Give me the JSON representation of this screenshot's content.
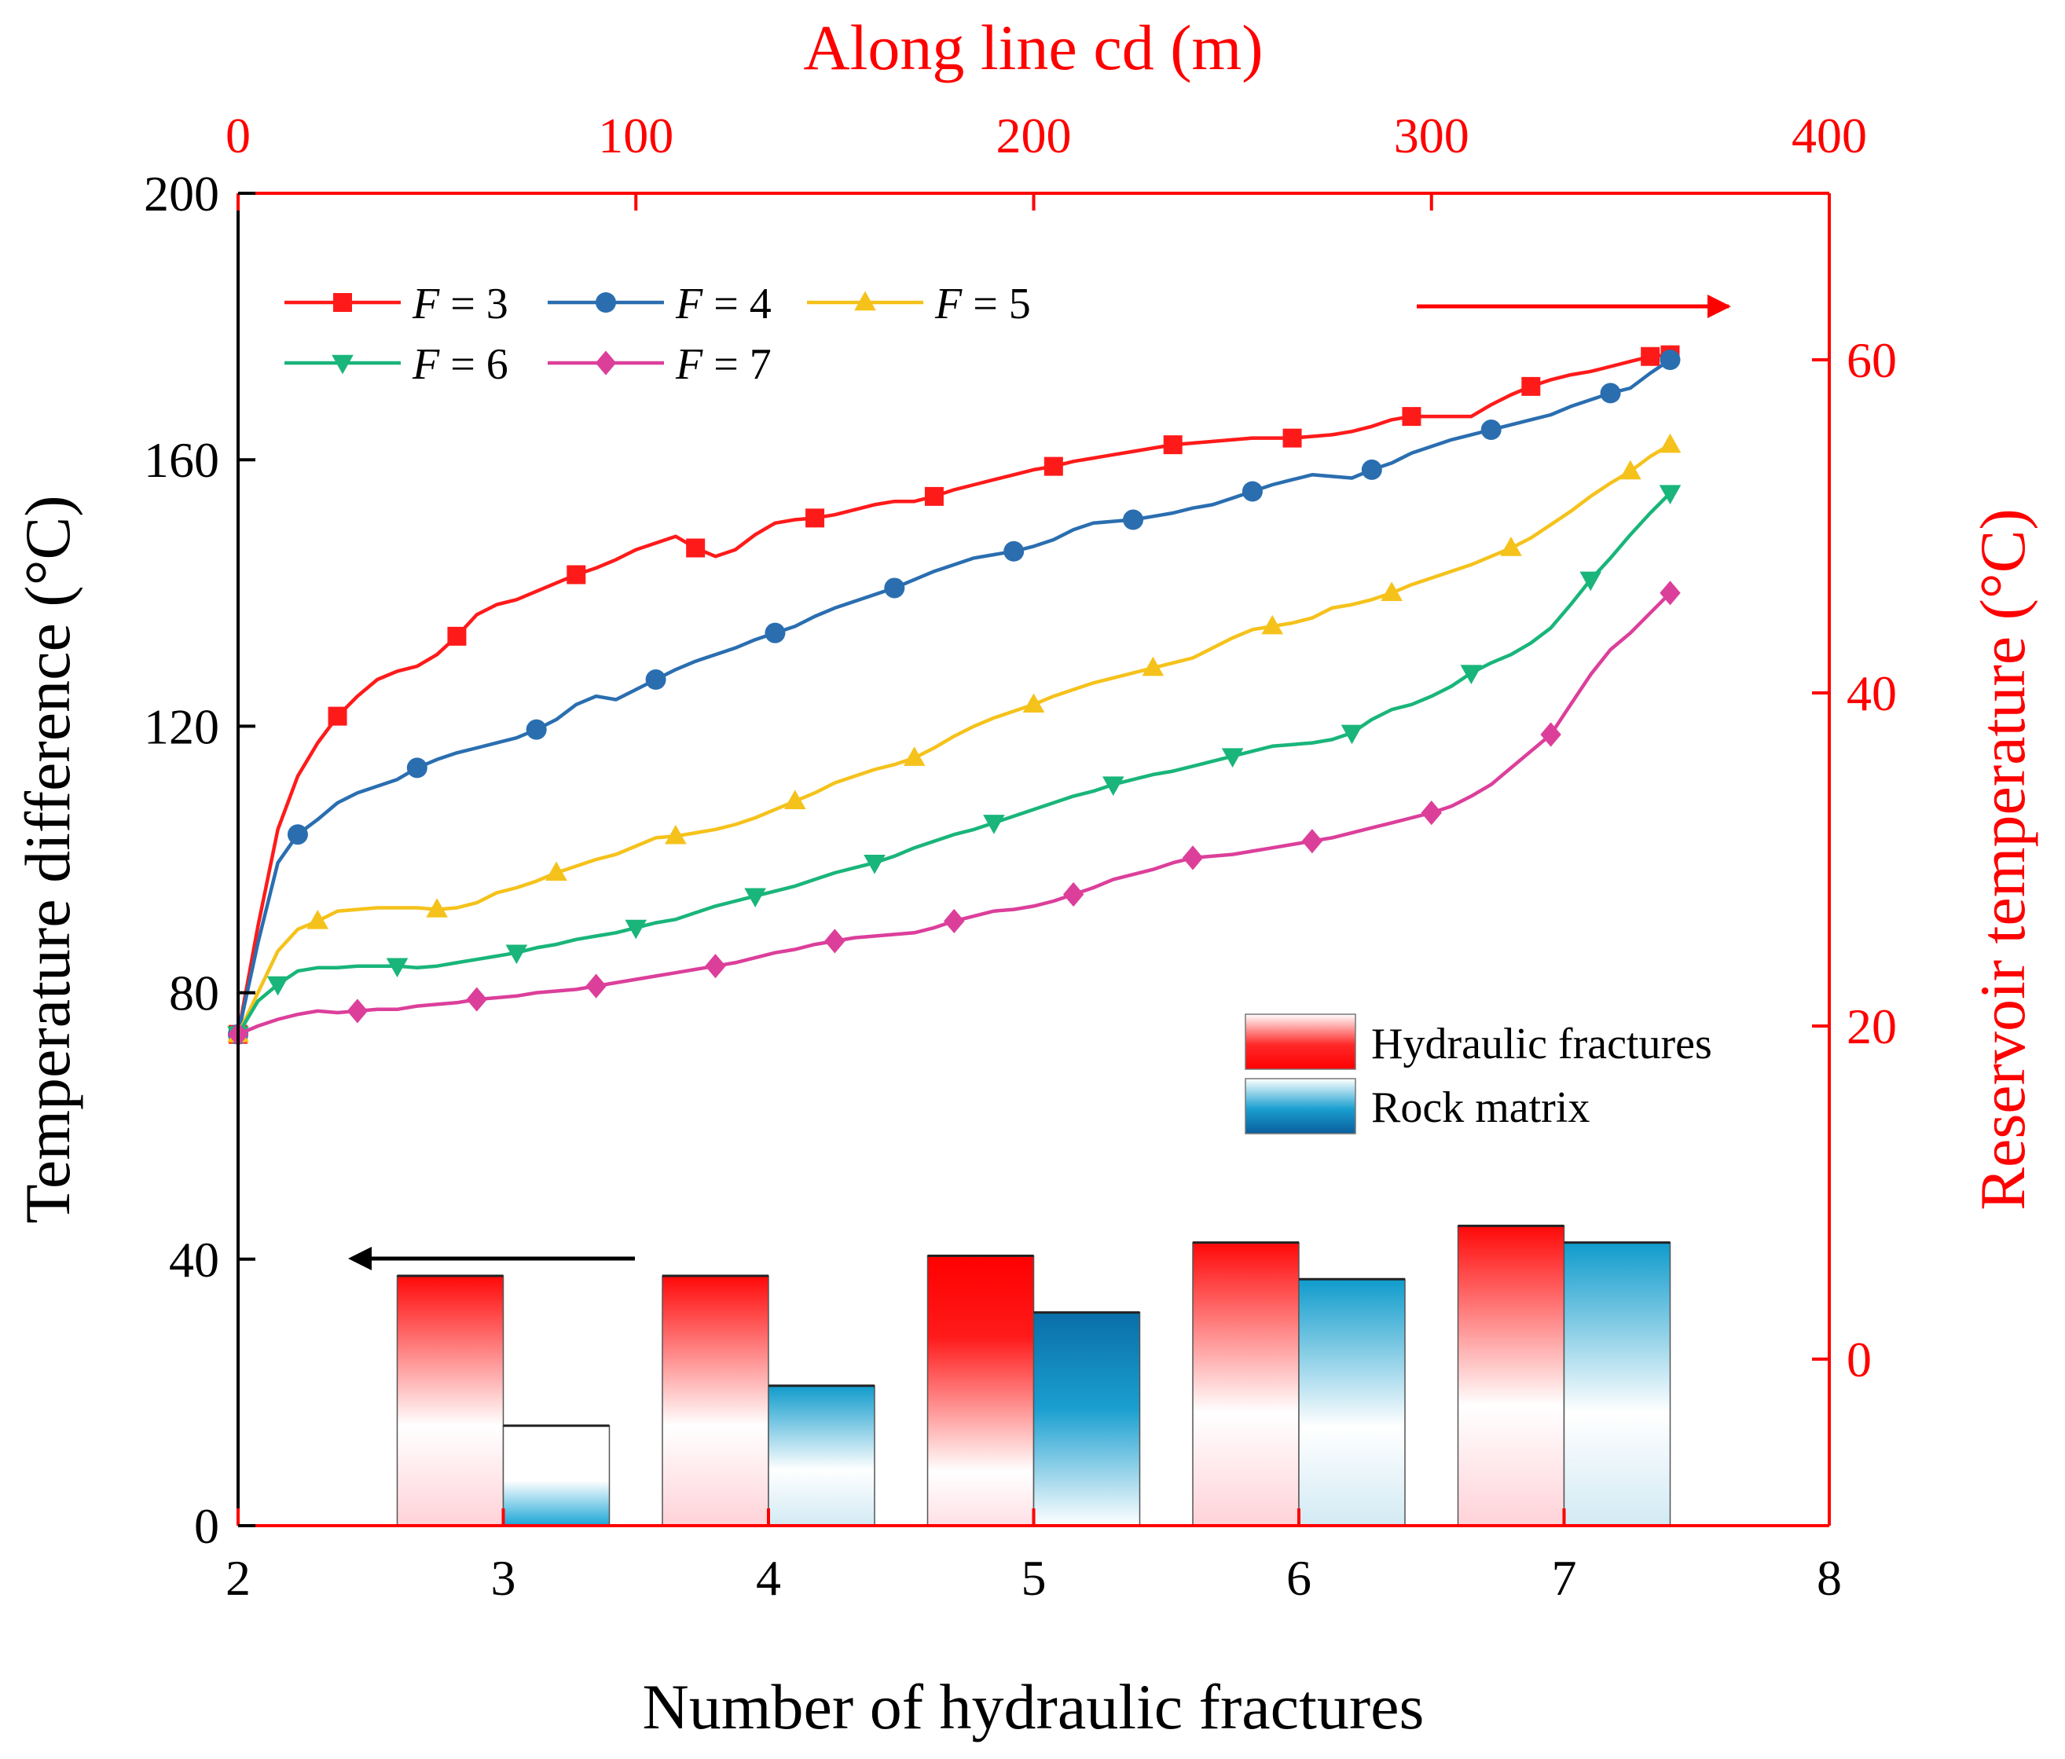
{
  "chart_data": {
    "type": "bar+line",
    "axes": {
      "bottom": {
        "label": "Number of hydraulic fractures",
        "ticks": [
          "2",
          "3",
          "4",
          "5",
          "6",
          "7",
          "8"
        ],
        "min": 2,
        "max": 8
      },
      "left": {
        "label": "Temperature difference (°C)",
        "ticks": [
          "0",
          "40",
          "80",
          "120",
          "160",
          "200"
        ],
        "min": 0,
        "max": 200
      },
      "top": {
        "label": "Along line cd (m)",
        "ticks": [
          "0",
          "100",
          "200",
          "300",
          "400"
        ],
        "min": 0,
        "max": 400
      },
      "right": {
        "label": "Reservoir temperature (°C)",
        "ticks": [
          "0",
          "20",
          "40",
          "60"
        ],
        "min": -10,
        "max": 70
      }
    },
    "bars": {
      "categories": [
        3,
        4,
        5,
        6,
        7
      ],
      "series": [
        {
          "name": "Hydraulic fractures",
          "values": [
            37.5,
            37.5,
            40.5,
            42.5,
            45
          ]
        },
        {
          "name": "Rock matrix",
          "values": [
            15,
            21,
            32,
            37,
            42.5
          ]
        }
      ]
    },
    "lines": {
      "x": [
        0,
        5,
        10,
        15,
        20,
        25,
        30,
        35,
        40,
        45,
        50,
        55,
        60,
        65,
        70,
        75,
        80,
        85,
        90,
        95,
        100,
        105,
        110,
        115,
        120,
        125,
        130,
        135,
        140,
        145,
        150,
        155,
        160,
        165,
        170,
        175,
        180,
        185,
        190,
        195,
        200,
        205,
        210,
        215,
        220,
        225,
        230,
        235,
        240,
        245,
        250,
        255,
        260,
        265,
        270,
        275,
        280,
        285,
        290,
        295,
        300,
        305,
        310,
        315,
        320,
        325,
        330,
        335,
        340,
        345,
        350,
        355,
        360
      ],
      "series": [
        {
          "name": "F = 3",
          "marker": "square",
          "values": [
            19.5,
            26.0,
            31.8,
            35.0,
            37.0,
            38.6,
            39.8,
            40.8,
            41.3,
            41.6,
            42.3,
            43.4,
            44.7,
            45.3,
            45.6,
            46.1,
            46.6,
            47.1,
            47.5,
            48.0,
            48.6,
            49.0,
            49.4,
            48.7,
            48.2,
            48.6,
            49.5,
            50.2,
            50.4,
            50.5,
            50.7,
            51.0,
            51.3,
            51.5,
            51.5,
            51.8,
            52.2,
            52.5,
            52.8,
            53.1,
            53.4,
            53.6,
            53.9,
            54.1,
            54.3,
            54.5,
            54.7,
            54.9,
            55.0,
            55.1,
            55.2,
            55.3,
            55.3,
            55.3,
            55.4,
            55.5,
            55.7,
            56.0,
            56.4,
            56.6,
            56.6,
            56.6,
            56.6,
            57.3,
            57.9,
            58.4,
            58.8,
            59.1,
            59.3,
            59.6,
            59.9,
            60.2,
            60.3
          ]
        },
        {
          "name": "F = 4",
          "marker": "circle",
          "values": [
            19.5,
            25.0,
            29.8,
            31.5,
            32.4,
            33.4,
            34.0,
            34.4,
            34.8,
            35.5,
            36.0,
            36.4,
            36.7,
            37.0,
            37.3,
            37.8,
            38.4,
            39.3,
            39.8,
            39.6,
            40.2,
            40.8,
            41.4,
            41.9,
            42.3,
            42.7,
            43.2,
            43.6,
            44.0,
            44.6,
            45.1,
            45.5,
            45.9,
            46.3,
            46.8,
            47.3,
            47.7,
            48.1,
            48.3,
            48.5,
            48.8,
            49.2,
            49.8,
            50.2,
            50.3,
            50.4,
            50.6,
            50.8,
            51.1,
            51.3,
            51.7,
            52.1,
            52.5,
            52.8,
            53.1,
            53.0,
            52.9,
            53.4,
            53.8,
            54.4,
            54.8,
            55.2,
            55.5,
            55.8,
            56.1,
            56.4,
            56.7,
            57.2,
            57.6,
            58.0,
            58.3,
            59.2,
            60.0
          ]
        },
        {
          "name": "F = 5",
          "marker": "triangle-up",
          "values": [
            19.5,
            22.0,
            24.5,
            25.8,
            26.3,
            26.9,
            27.0,
            27.1,
            27.1,
            27.1,
            27.0,
            27.1,
            27.4,
            28.0,
            28.3,
            28.7,
            29.2,
            29.6,
            30.0,
            30.3,
            30.8,
            31.3,
            31.4,
            31.6,
            31.8,
            32.1,
            32.5,
            33.0,
            33.5,
            34.0,
            34.6,
            35.0,
            35.4,
            35.7,
            36.1,
            36.7,
            37.4,
            38.0,
            38.5,
            38.9,
            39.3,
            39.8,
            40.2,
            40.6,
            40.9,
            41.2,
            41.5,
            41.8,
            42.1,
            42.7,
            43.3,
            43.8,
            44.0,
            44.2,
            44.5,
            45.1,
            45.3,
            45.6,
            46.0,
            46.5,
            46.9,
            47.3,
            47.7,
            48.2,
            48.7,
            49.3,
            50.1,
            50.9,
            51.8,
            52.6,
            53.3,
            54.2,
            54.9
          ]
        },
        {
          "name": "F = 6",
          "marker": "triangle-down",
          "values": [
            19.5,
            21.5,
            22.5,
            23.3,
            23.5,
            23.5,
            23.6,
            23.6,
            23.6,
            23.5,
            23.6,
            23.8,
            24.0,
            24.2,
            24.4,
            24.7,
            24.9,
            25.2,
            25.4,
            25.6,
            25.9,
            26.2,
            26.4,
            26.8,
            27.2,
            27.5,
            27.8,
            28.1,
            28.4,
            28.8,
            29.2,
            29.5,
            29.8,
            30.2,
            30.7,
            31.1,
            31.5,
            31.8,
            32.2,
            32.6,
            33.0,
            33.4,
            33.8,
            34.1,
            34.5,
            34.8,
            35.1,
            35.3,
            35.6,
            35.9,
            36.2,
            36.5,
            36.8,
            36.9,
            37.0,
            37.2,
            37.6,
            38.4,
            39.0,
            39.3,
            39.8,
            40.4,
            41.2,
            41.8,
            42.3,
            43.0,
            43.9,
            45.3,
            46.8,
            48.1,
            49.5,
            50.8,
            52.0
          ]
        },
        {
          "name": "F = 7",
          "marker": "diamond",
          "values": [
            19.5,
            20.0,
            20.4,
            20.7,
            20.9,
            20.8,
            20.9,
            21.0,
            21.0,
            21.2,
            21.3,
            21.4,
            21.6,
            21.7,
            21.8,
            22.0,
            22.1,
            22.2,
            22.4,
            22.6,
            22.8,
            23.0,
            23.2,
            23.4,
            23.6,
            23.8,
            24.1,
            24.4,
            24.6,
            24.9,
            25.1,
            25.3,
            25.4,
            25.5,
            25.6,
            25.9,
            26.3,
            26.6,
            26.9,
            27.0,
            27.2,
            27.5,
            27.9,
            28.3,
            28.8,
            29.1,
            29.4,
            29.8,
            30.1,
            30.2,
            30.3,
            30.5,
            30.7,
            30.9,
            31.1,
            31.3,
            31.6,
            31.9,
            32.2,
            32.5,
            32.8,
            33.2,
            33.8,
            34.5,
            35.5,
            36.5,
            37.5,
            39.3,
            41.1,
            42.6,
            43.6,
            44.8,
            46.0
          ]
        }
      ]
    },
    "arrows": [
      {
        "direction": "left",
        "refers_to": "left axis (bars)"
      },
      {
        "direction": "right",
        "refers_to": "right axis (lines)"
      }
    ],
    "legend_lines_position": "top-left",
    "legend_bars_position": "middle-right",
    "colors": {
      "F3": "#ff1a1a",
      "F4": "#2a6eb0",
      "F5": "#f5c21b",
      "F6": "#19b57a",
      "F7": "#dc3f9a",
      "fracture": "#ff0000",
      "matrix": "#0f8fc0",
      "axis_right": "#ff0000",
      "axis_left": "#000000"
    }
  }
}
